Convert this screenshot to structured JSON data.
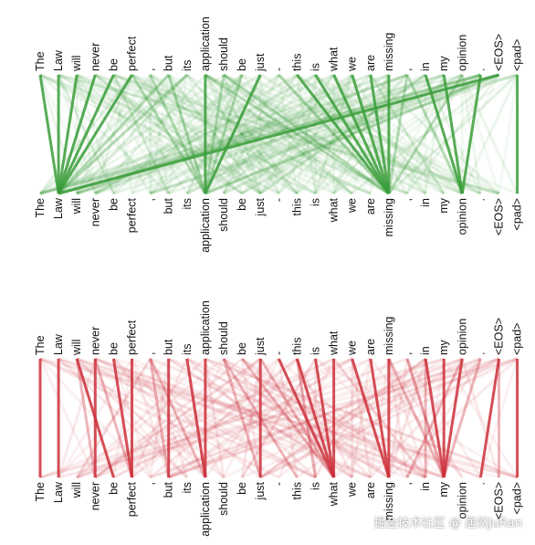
{
  "tokens": [
    "The",
    "Law",
    "will",
    "never",
    "be",
    "perfect",
    ",",
    "but",
    "its",
    "application",
    "should",
    "be",
    "just",
    "-",
    "this",
    "is",
    "what",
    "we",
    "are",
    "missing",
    ",",
    "in",
    "my",
    "opinion",
    ".",
    "<EOS>",
    "<pad>"
  ],
  "colors": {
    "top_panel": "#3a9e3a",
    "bottom_panel": "#cc2f3a",
    "text": "#111111"
  },
  "panels": [
    {
      "name": "green-attention",
      "color": "#3a9e3a",
      "strong_links": [
        [
          0,
          1
        ],
        [
          1,
          1
        ],
        [
          2,
          1
        ],
        [
          3,
          1
        ],
        [
          4,
          1
        ],
        [
          5,
          1
        ],
        [
          9,
          9
        ],
        [
          12,
          9
        ],
        [
          14,
          19
        ],
        [
          15,
          19
        ],
        [
          16,
          19
        ],
        [
          17,
          19
        ],
        [
          18,
          19
        ],
        [
          19,
          19
        ],
        [
          21,
          23
        ],
        [
          22,
          23
        ],
        [
          24,
          23
        ],
        [
          26,
          26
        ],
        [
          25,
          1
        ]
      ],
      "medium_links": [
        [
          5,
          9
        ],
        [
          6,
          9
        ],
        [
          7,
          9
        ],
        [
          8,
          1
        ],
        [
          10,
          9
        ],
        [
          11,
          9
        ],
        [
          13,
          19
        ],
        [
          20,
          19
        ],
        [
          23,
          19
        ],
        [
          9,
          19
        ],
        [
          24,
          1
        ],
        [
          25,
          9
        ],
        [
          20,
          23
        ],
        [
          7,
          1
        ],
        [
          10,
          19
        ]
      ]
    },
    {
      "name": "red-attention",
      "color": "#cc2f3a",
      "strong_links": [
        [
          0,
          0
        ],
        [
          1,
          1
        ],
        [
          2,
          4
        ],
        [
          3,
          3
        ],
        [
          4,
          5
        ],
        [
          7,
          7
        ],
        [
          8,
          9
        ],
        [
          9,
          9
        ],
        [
          14,
          16
        ],
        [
          15,
          16
        ],
        [
          16,
          16
        ],
        [
          17,
          19
        ],
        [
          18,
          19
        ],
        [
          19,
          19
        ],
        [
          21,
          22
        ],
        [
          22,
          22
        ],
        [
          23,
          22
        ],
        [
          25,
          24
        ],
        [
          26,
          26
        ],
        [
          13,
          16
        ],
        [
          12,
          12
        ],
        [
          5,
          5
        ]
      ],
      "medium_links": [
        [
          2,
          3
        ],
        [
          3,
          5
        ],
        [
          6,
          7
        ],
        [
          10,
          14
        ],
        [
          11,
          16
        ],
        [
          12,
          16
        ],
        [
          14,
          15
        ],
        [
          20,
          22
        ],
        [
          23,
          20
        ],
        [
          24,
          22
        ],
        [
          25,
          25
        ],
        [
          19,
          22
        ],
        [
          21,
          21
        ],
        [
          6,
          9
        ],
        [
          10,
          12
        ]
      ]
    }
  ],
  "watermark": "掘金技术社区 @ 居然JuRan"
}
